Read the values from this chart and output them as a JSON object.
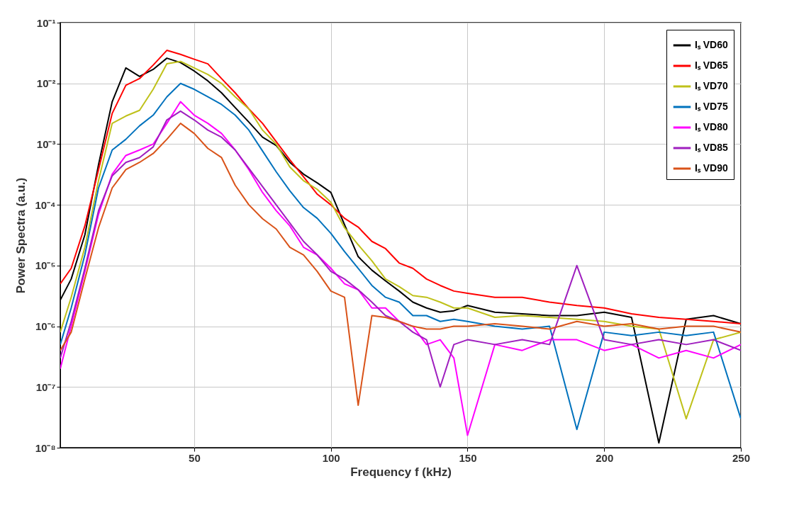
{
  "chart_data": {
    "type": "line",
    "xlabel": "Frequency f (kHz)",
    "ylabel": "Power Spectra (a.u.)",
    "log": "y",
    "grid": true,
    "legend": "top right",
    "xlim": [
      1,
      250
    ],
    "xticks": [
      50,
      100,
      150,
      200,
      250
    ],
    "ylim": [
      1e-08,
      0.1
    ],
    "yticks": [
      {
        "value": 1e-08,
        "label": "10⁻⁸"
      },
      {
        "value": 1e-07,
        "label": "10⁻⁷"
      },
      {
        "value": 1e-06,
        "label": "10⁻⁶"
      },
      {
        "value": 1e-05,
        "label": "10⁻⁵"
      },
      {
        "value": 0.0001,
        "label": "10⁻⁴"
      },
      {
        "value": 0.001,
        "label": "10⁻³"
      },
      {
        "value": 0.01,
        "label": "10⁻²"
      },
      {
        "value": 0.1,
        "label": "10⁻¹"
      }
    ],
    "x": [
      1,
      5,
      10,
      15,
      20,
      25,
      30,
      35,
      40,
      45,
      50,
      55,
      60,
      65,
      70,
      75,
      80,
      85,
      90,
      95,
      100,
      105,
      110,
      115,
      120,
      125,
      130,
      135,
      140,
      145,
      150,
      160,
      170,
      180,
      190,
      200,
      210,
      220,
      230,
      240,
      250
    ],
    "series": [
      {
        "name": "Iₛ VD60",
        "color": "#000000",
        "values": [
          2.7e-06,
          6e-06,
          3.2e-05,
          0.00046,
          0.005,
          0.018,
          0.013,
          0.017,
          0.026,
          0.022,
          0.016,
          0.011,
          0.007,
          0.004,
          0.0023,
          0.0013,
          0.00095,
          0.0005,
          0.00032,
          0.00023,
          0.00016,
          4.7e-05,
          1.4e-05,
          8.4e-06,
          5.6e-06,
          3.8e-06,
          2.5e-06,
          2e-06,
          1.7e-06,
          1.8e-06,
          2.2e-06,
          1.7e-06,
          1.6e-06,
          1.5e-06,
          1.5e-06,
          1.7e-06,
          1.4e-06,
          1.2e-08,
          1.3e-06,
          1.5e-06,
          1.1e-06
        ]
      },
      {
        "name": "Iₛ VD65",
        "color": "#ff0000",
        "values": [
          5e-06,
          9e-06,
          4.5e-05,
          0.00038,
          0.0032,
          0.0093,
          0.012,
          0.02,
          0.035,
          0.03,
          0.025,
          0.021,
          0.012,
          0.007,
          0.0038,
          0.0022,
          0.0011,
          0.00055,
          0.00029,
          0.00015,
          0.0001,
          6e-05,
          4.3e-05,
          2.5e-05,
          1.9e-05,
          1.1e-05,
          9e-06,
          6e-06,
          4.7e-06,
          3.8e-06,
          3.5e-06,
          3e-06,
          3e-06,
          2.5e-06,
          2.2e-06,
          2e-06,
          1.6e-06,
          1.4e-06,
          1.3e-06,
          1.2e-06,
          1.1e-06
        ]
      },
      {
        "name": "Iₛ VD70",
        "color": "#bfc11a",
        "values": [
          8e-07,
          3e-06,
          2e-05,
          0.00025,
          0.0022,
          0.0029,
          0.0036,
          0.008,
          0.021,
          0.023,
          0.018,
          0.014,
          0.01,
          0.006,
          0.0038,
          0.0017,
          0.001,
          0.00042,
          0.00025,
          0.00018,
          0.00011,
          4.2e-05,
          2.2e-05,
          1.2e-05,
          6e-06,
          4.5e-06,
          3.2e-06,
          3e-06,
          2.5e-06,
          2e-06,
          2e-06,
          1.4e-06,
          1.5e-06,
          1.4e-06,
          1.3e-06,
          1.2e-06,
          1e-06,
          9e-07,
          3e-08,
          6e-07,
          8e-07
        ]
      },
      {
        "name": "Iₛ VD75",
        "color": "#0072bd",
        "values": [
          5e-07,
          2e-06,
          1.5e-05,
          0.00019,
          0.0008,
          0.0012,
          0.002,
          0.003,
          0.006,
          0.01,
          0.008,
          0.006,
          0.0045,
          0.003,
          0.0017,
          0.00077,
          0.00035,
          0.00017,
          9e-05,
          6e-05,
          3.4e-05,
          1.7e-05,
          9e-06,
          4.7e-06,
          3e-06,
          2.5e-06,
          1.5e-06,
          1.5e-06,
          1.2e-06,
          1.3e-06,
          1.2e-06,
          1e-06,
          9e-07,
          1e-06,
          2e-08,
          8e-07,
          7e-07,
          8e-07,
          7e-07,
          8e-07,
          3e-08
        ]
      },
      {
        "name": "Iₛ VD80",
        "color": "#ff00ff",
        "values": [
          2e-07,
          1e-06,
          8e-06,
          7e-05,
          0.00032,
          0.00065,
          0.0008,
          0.001,
          0.0022,
          0.005,
          0.003,
          0.0022,
          0.0015,
          0.0008,
          0.00038,
          0.00016,
          8e-05,
          4.5e-05,
          2e-05,
          1.5e-05,
          9e-06,
          5e-06,
          4e-06,
          2e-06,
          2e-06,
          1.2e-06,
          1e-06,
          5e-07,
          6e-07,
          3e-07,
          1.6e-08,
          5e-07,
          4e-07,
          6e-07,
          6e-07,
          4e-07,
          5e-07,
          3e-07,
          4e-07,
          3e-07,
          5e-07
        ]
      },
      {
        "name": "Iₛ VD85",
        "color": "#9f1fbf",
        "values": [
          3e-07,
          1.2e-06,
          9e-06,
          8e-05,
          0.0003,
          0.0005,
          0.0006,
          0.0009,
          0.0025,
          0.0035,
          0.0025,
          0.0017,
          0.0013,
          0.0008,
          0.0004,
          0.0002,
          0.0001,
          5e-05,
          2.5e-05,
          1.5e-05,
          8e-06,
          6e-06,
          4e-06,
          2.5e-06,
          1.5e-06,
          1.2e-06,
          8e-07,
          6e-07,
          1e-07,
          5e-07,
          6e-07,
          5e-07,
          6e-07,
          5e-07,
          1e-05,
          6e-07,
          5e-07,
          6e-07,
          5e-07,
          6e-07,
          4e-07
        ]
      },
      {
        "name": "Iₛ VD90",
        "color": "#d95319",
        "values": [
          4e-07,
          8e-07,
          6e-06,
          4.2e-05,
          0.00019,
          0.00038,
          0.0005,
          0.0007,
          0.0012,
          0.0022,
          0.0015,
          0.00085,
          0.0006,
          0.00021,
          0.0001,
          5.9e-05,
          4e-05,
          2e-05,
          1.5e-05,
          8e-06,
          3.8e-06,
          3e-06,
          5e-08,
          1.5e-06,
          1.4e-06,
          1.2e-06,
          1e-06,
          9e-07,
          9e-07,
          1e-06,
          1e-06,
          1.1e-06,
          1e-06,
          9e-07,
          1.2e-06,
          1e-06,
          1.1e-06,
          9e-07,
          1e-06,
          1e-06,
          8e-07
        ]
      }
    ]
  }
}
